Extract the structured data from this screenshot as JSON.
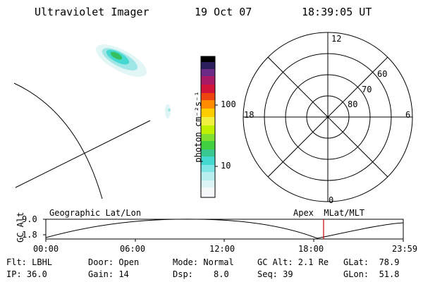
{
  "header": {
    "instrument": "Ultraviolet Imager",
    "date": "19 Oct 07",
    "time": "18:39:05 UT"
  },
  "colorbar": {
    "unit_label": "photon cm⁻²s⁻¹",
    "ticks": [
      "100",
      "10"
    ]
  },
  "polar_plot": {
    "mlt_labels": {
      "top": "12",
      "left": "18",
      "right": "6",
      "bottom": "0"
    },
    "lat_labels": [
      "60",
      "70",
      "80"
    ]
  },
  "timeline": {
    "left_title": "Geographic Lat/Lon",
    "right_title": "Apex  MLat/MLT",
    "y_axis_label": "GC Alt",
    "y_ticks": [
      "9.0",
      "1.8"
    ],
    "x_ticks": [
      "00:00",
      "06:00",
      "12:00",
      "18:00",
      "23:59"
    ],
    "current_time_hour": 18.65,
    "marker_color": "#cc0000",
    "alt_range": [
      1.8,
      9.0
    ]
  },
  "status": {
    "flt": "Flt: LBHL",
    "ip": "IP: 36.0",
    "door": "Door: Open",
    "gain": "Gain: 14",
    "mode": "Mode: Normal",
    "dsp_label": "Dsp:",
    "dsp_value": "8.0",
    "gc_alt": "GC Alt: 2.1 Re",
    "seq": "Seq: 39",
    "glat": "GLat:  78.9",
    "glon": "GLon:  51.8"
  },
  "colors": {
    "aurora_bright": "#33c060",
    "aurora_mid": "#44d8d0",
    "aurora_faint": "#bfeeee"
  }
}
